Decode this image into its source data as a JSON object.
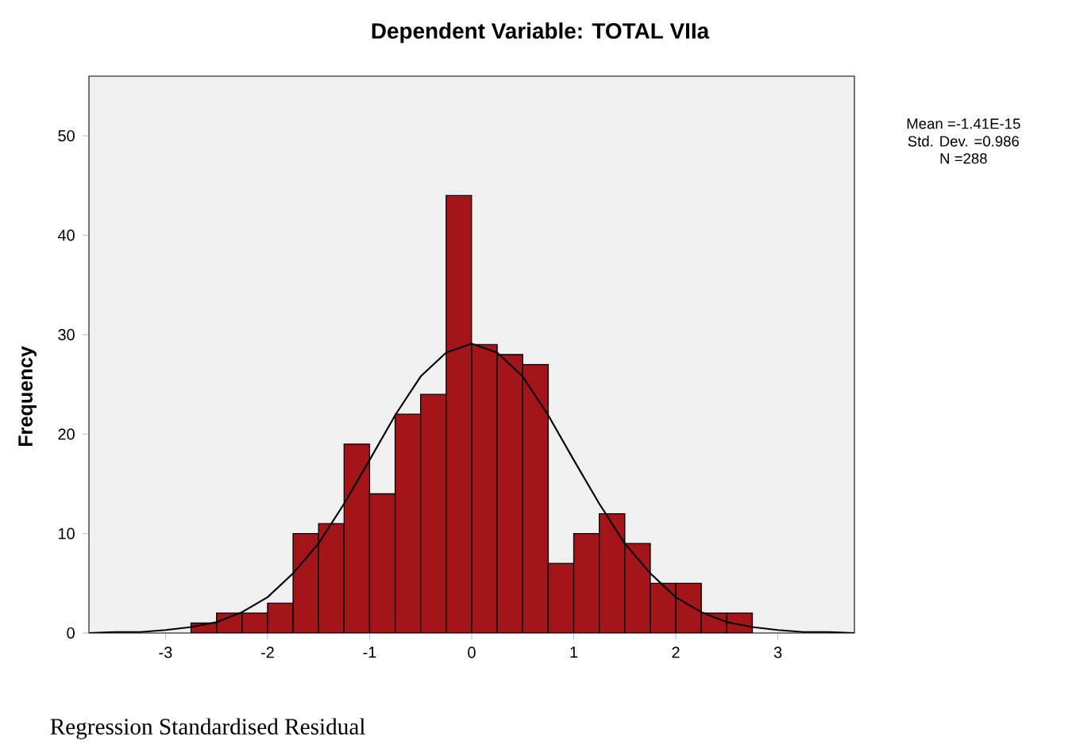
{
  "chart_data": {
    "type": "histogram",
    "title": "Dependent Variable: TOTAL VIIa",
    "xlabel": "Regression Standardised Residual",
    "ylabel": "Frequency",
    "bins": [
      -2.75,
      -2.5,
      -2.25,
      -2,
      -1.75,
      -1.5,
      -1.25,
      -1,
      -0.75,
      -0.5,
      -0.25,
      0,
      0.25,
      0.5,
      0.75,
      1,
      1.25,
      1.5,
      1.75,
      2,
      2.25,
      2.5,
      2.75
    ],
    "values": [
      1,
      2,
      2,
      3,
      10,
      11,
      19,
      14,
      22,
      24,
      44,
      29,
      28,
      27,
      7,
      10,
      12,
      9,
      5,
      5,
      2,
      2
    ],
    "color": "#a31519",
    "series": [
      {
        "type": "line",
        "color": "#000000",
        "x": [
          -3.75,
          -3.5,
          -3.25,
          -3,
          -2.75,
          -2.5,
          -2.25,
          -2,
          -1.75,
          -1.5,
          -1.25,
          -1,
          -0.75,
          -0.5,
          -0.25,
          0,
          0.25,
          0.5,
          0.75,
          1,
          1.25,
          1.5,
          1.75,
          2,
          2.25,
          2.5,
          2.75,
          3,
          3.25,
          3.5,
          3.75
        ],
        "values": [
          0,
          0.1,
          0.1,
          0.3,
          0.6,
          1.1,
          2.1,
          3.6,
          6,
          9,
          13,
          17.4,
          21.9,
          25.8,
          28.2,
          29.1,
          28.2,
          25.8,
          21.9,
          17.4,
          13,
          9,
          6,
          3.6,
          2.1,
          1.1,
          0.6,
          0.3,
          0.1,
          0.1,
          0
        ]
      }
    ],
    "xlim": [
      -3.75,
      3.75
    ],
    "ylim": [
      0,
      56
    ],
    "xticks": [
      -3,
      -2,
      -1,
      0,
      1,
      2,
      3
    ],
    "yticks": [
      0,
      10,
      20,
      30,
      40,
      50
    ],
    "grid": false,
    "annotations": [
      "Mean =-1.41E-15",
      "Std. Dev. =0.986",
      "N =288"
    ]
  }
}
